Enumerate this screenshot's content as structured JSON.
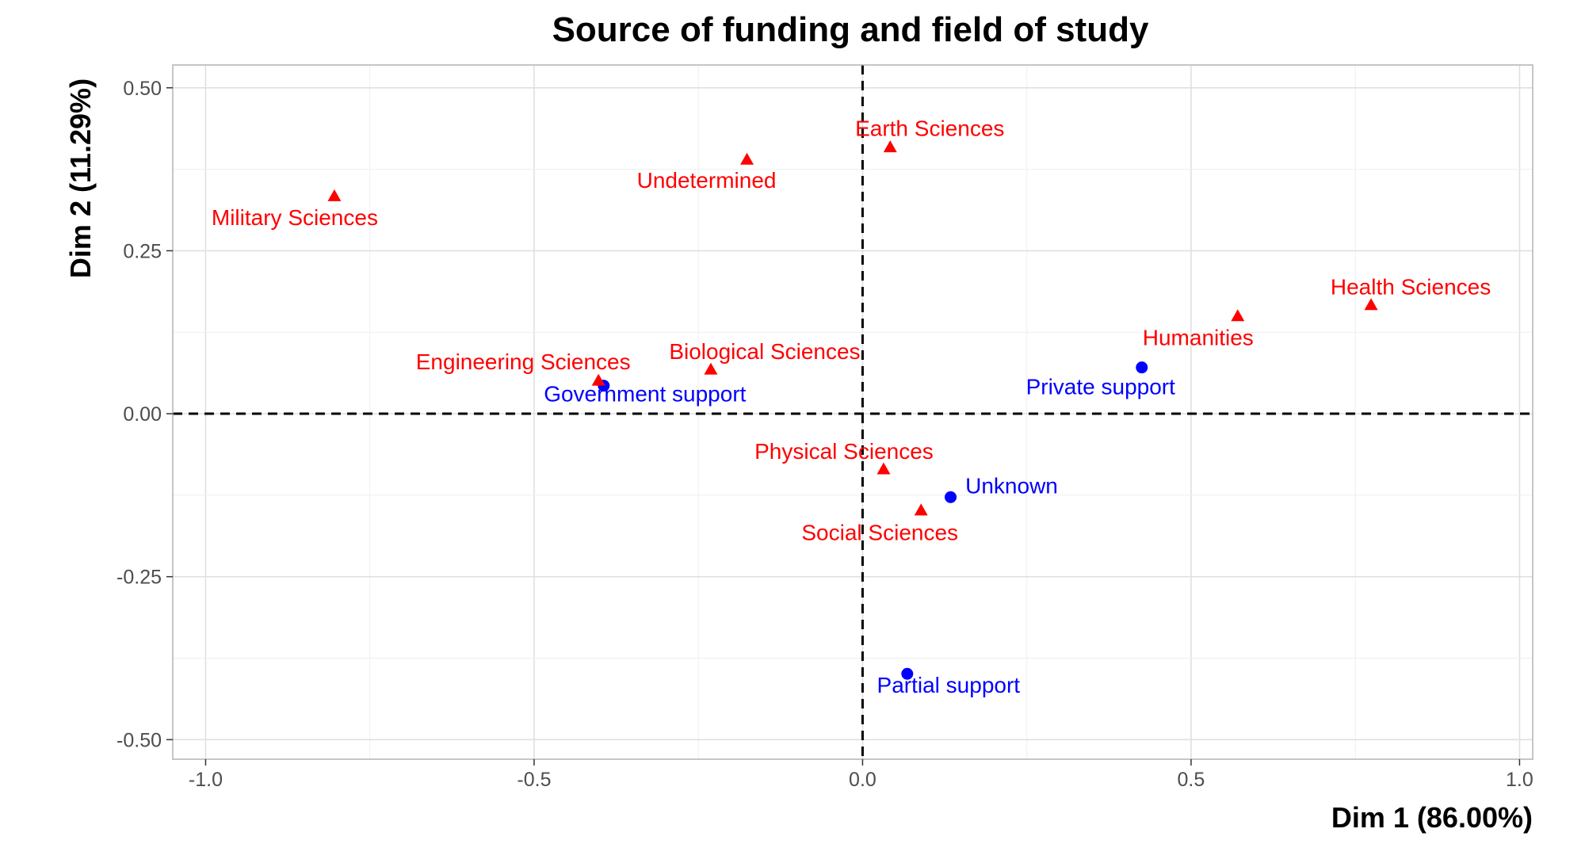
{
  "chart_data": {
    "type": "scatter",
    "title": "Source of funding and field of study",
    "xlabel": "Dim 1 (86.00%)",
    "ylabel": "Dim 2 (11.29%)",
    "xlim": [
      -1.05,
      1.02
    ],
    "ylim": [
      -0.53,
      0.535
    ],
    "x_ticks": [
      -1.0,
      -0.5,
      0.0,
      0.5,
      1.0
    ],
    "x_tick_labels": [
      "-1.0",
      "-0.5",
      "0.0",
      "0.5",
      "1.0"
    ],
    "y_ticks": [
      -0.5,
      -0.25,
      0.0,
      0.25,
      0.5
    ],
    "y_tick_labels": [
      "-0.50",
      "-0.25",
      "0.00",
      "0.25",
      "0.50"
    ],
    "grid": true,
    "reference_lines": {
      "x": 0,
      "y": 0,
      "style": "dashed"
    },
    "series": [
      {
        "color": "#0000ff",
        "marker": "circle",
        "points": [
          {
            "label": "Government support",
            "x": -0.394,
            "y": 0.043
          },
          {
            "label": "Private support",
            "x": 0.425,
            "y": 0.071
          },
          {
            "label": "Unknown",
            "x": 0.134,
            "y": -0.128
          },
          {
            "label": "Partial support",
            "x": 0.068,
            "y": -0.399
          }
        ]
      },
      {
        "color": "#ff0000",
        "marker": "triangle",
        "points": [
          {
            "label": "Military Sciences",
            "x": -0.804,
            "y": 0.333
          },
          {
            "label": "Undetermined",
            "x": -0.176,
            "y": 0.389
          },
          {
            "label": "Earth Sciences",
            "x": 0.042,
            "y": 0.408
          },
          {
            "label": "Health Sciences",
            "x": 0.774,
            "y": 0.166
          },
          {
            "label": "Humanities",
            "x": 0.571,
            "y": 0.149
          },
          {
            "label": "Biological Sciences",
            "x": -0.231,
            "y": 0.067
          },
          {
            "label": "Engineering Sciences",
            "x": -0.402,
            "y": 0.05
          },
          {
            "label": "Physical Sciences",
            "x": 0.032,
            "y": -0.086
          },
          {
            "label": "Social Sciences",
            "x": 0.089,
            "y": -0.149
          }
        ]
      }
    ]
  }
}
